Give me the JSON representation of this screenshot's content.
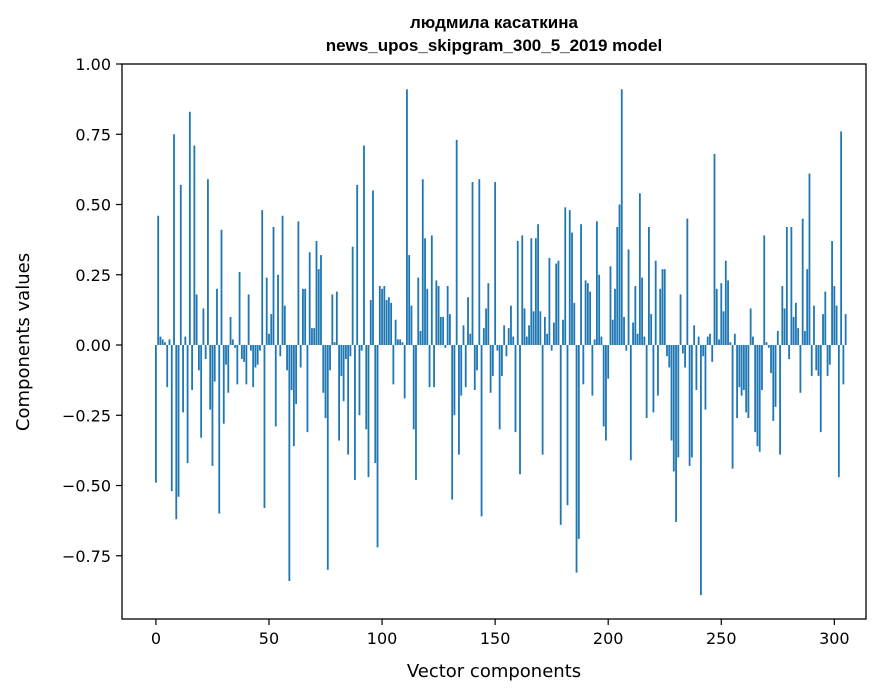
{
  "chart_data": {
    "type": "bar",
    "title": "людмила касаткина",
    "subtitle": "news_upos_skipgram_300_5_2019 model",
    "xlabel": "Vector components",
    "ylabel": "Components values",
    "xlim": [
      -15,
      314
    ],
    "ylim": [
      -0.975,
      1.0
    ],
    "xticks": [
      0,
      50,
      100,
      150,
      200,
      250,
      300
    ],
    "yticks": [
      -0.75,
      -0.5,
      -0.25,
      0.0,
      0.25,
      0.5,
      0.75,
      1.0
    ],
    "ytick_labels": [
      "−0.75",
      "−0.50",
      "−0.25",
      "0.00",
      "0.25",
      "0.50",
      "0.75",
      "1.00"
    ],
    "bar_color": "#1f77b4",
    "grid": false,
    "values": [
      -0.49,
      0.46,
      0.03,
      0.02,
      0.01,
      -0.15,
      0.02,
      -0.52,
      0.75,
      -0.62,
      -0.54,
      0.57,
      -0.24,
      0.03,
      -0.42,
      0.83,
      -0.16,
      0.71,
      0.18,
      -0.09,
      -0.33,
      0.13,
      -0.05,
      0.59,
      -0.23,
      -0.43,
      -0.13,
      0.2,
      -0.6,
      0.41,
      -0.28,
      -0.07,
      -0.17,
      0.1,
      0.02,
      -0.01,
      -0.14,
      0.26,
      -0.05,
      -0.06,
      -0.14,
      0.18,
      -0.02,
      -0.15,
      -0.08,
      -0.07,
      -0.02,
      0.48,
      -0.58,
      0.24,
      0.04,
      0.11,
      0.42,
      -0.29,
      0.25,
      -0.04,
      0.46,
      0.14,
      -0.09,
      -0.84,
      -0.16,
      -0.36,
      -0.21,
      0.44,
      -0.08,
      0.2,
      0.2,
      -0.31,
      0.33,
      0.06,
      0.06,
      0.37,
      0.27,
      0.32,
      -0.17,
      -0.26,
      -0.8,
      -0.09,
      0.18,
      0.01,
      0.19,
      -0.34,
      -0.11,
      -0.2,
      -0.05,
      -0.39,
      -0.04,
      0.35,
      -0.48,
      0.57,
      -0.25,
      -0.02,
      0.71,
      -0.3,
      -0.47,
      0.16,
      0.55,
      -0.42,
      -0.72,
      0.21,
      0.2,
      0.21,
      0.16,
      0.17,
      0.15,
      -0.14,
      0.09,
      0.02,
      0.02,
      0.01,
      -0.19,
      0.91,
      0.32,
      0.14,
      -0.3,
      -0.48,
      0.24,
      0.05,
      0.59,
      0.38,
      0.2,
      -0.15,
      0.39,
      -0.15,
      0.23,
      0.21,
      0.1,
      0.1,
      -0.01,
      0.21,
      0.11,
      -0.55,
      -0.25,
      0.73,
      -0.39,
      -0.18,
      0.07,
      -0.15,
      0.17,
      0.04,
      0.58,
      -0.16,
      -0.09,
      0.59,
      -0.61,
      0.06,
      0.13,
      0.22,
      -0.17,
      -0.11,
      0.58,
      -0.02,
      -0.3,
      -0.11,
      0.07,
      -0.04,
      0.06,
      0.14,
      0.03,
      -0.31,
      0.37,
      -0.46,
      0.39,
      0.13,
      0.03,
      0.07,
      0.38,
      0.12,
      0.38,
      0.43,
      0.12,
      -0.39,
      0.1,
      0.04,
      0.31,
      -0.02,
      0.08,
      0.29,
      0.3,
      -0.64,
      0.09,
      0.49,
      -0.57,
      0.48,
      0.4,
      0.15,
      -0.81,
      -0.69,
      0.43,
      -0.14,
      0.23,
      0.22,
      0.19,
      -0.18,
      0.02,
      0.44,
      0.25,
      0.03,
      -0.29,
      -0.34,
      -0.12,
      0.28,
      0.09,
      0.2,
      0.42,
      0.5,
      0.91,
      0.1,
      -0.02,
      0.34,
      -0.41,
      0.08,
      0.21,
      0.04,
      0.54,
      0.24,
      0.03,
      -0.26,
      0.42,
      0.11,
      -0.24,
      0.3,
      -0.18,
      0.2,
      0.27,
      0.27,
      -0.04,
      -0.08,
      -0.34,
      -0.45,
      -0.63,
      -0.4,
      0.18,
      -0.03,
      -0.08,
      0.45,
      -0.43,
      -0.4,
      0.07,
      -0.16,
      0.03,
      -0.89,
      -0.04,
      -0.23,
      0.03,
      0.04,
      -0.06,
      0.68,
      0.2,
      0.02,
      0.22,
      0.12,
      0.3,
      0.23,
      0.01,
      -0.44,
      0.04,
      -0.26,
      -0.15,
      -0.18,
      -0.16,
      -0.24,
      -0.26,
      0.13,
      0.03,
      -0.31,
      -0.36,
      -0.38,
      -0.16,
      0.39,
      0.01,
      -0.01,
      -0.1,
      -0.27,
      -0.22,
      0.05,
      -0.39,
      0.21,
      0.13,
      0.42,
      -0.05,
      0.42,
      0.1,
      0.15,
      0.06,
      -0.17,
      0.45,
      0.05,
      0.27,
      0.61,
      -0.11,
      0.14,
      -0.09,
      -0.11,
      -0.31,
      0.11,
      0.19,
      -0.11,
      -0.07,
      0.37,
      0.21,
      0.14,
      -0.47,
      0.76,
      -0.14,
      0.11
    ]
  }
}
